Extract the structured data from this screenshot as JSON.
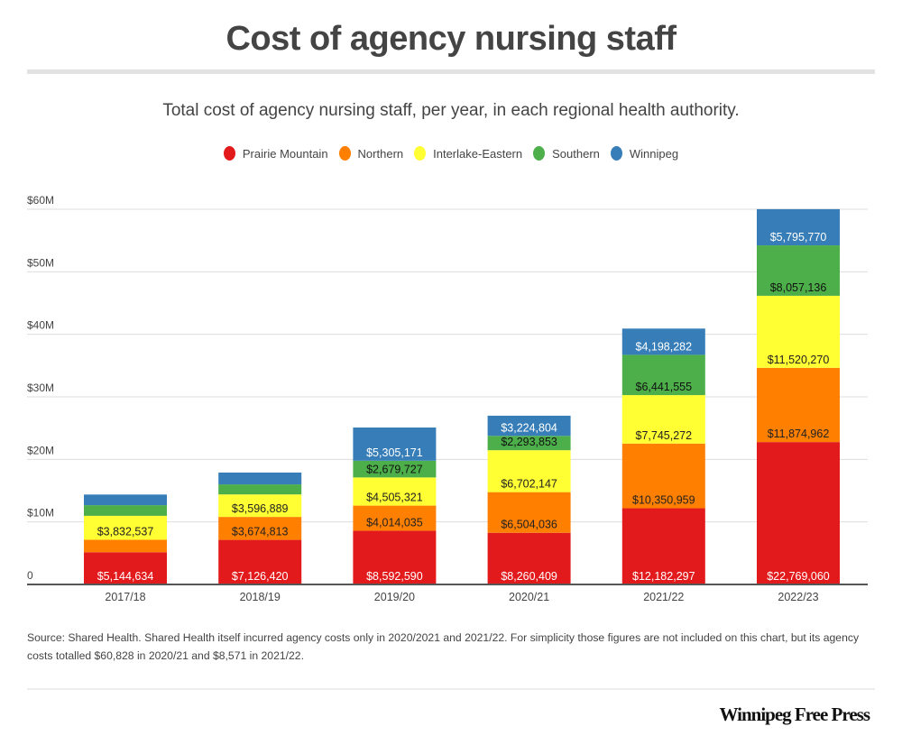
{
  "header": {
    "title": "Cost of agency nursing staff",
    "subtitle": "Total cost of agency nursing staff, per year, in each regional health authority."
  },
  "footer": {
    "note": "Source: Shared Health.  Shared Health itself incurred agency costs only in 2020/2021 and 2021/22. For simplicity those figures are not included on this chart, but its agency costs totalled $60,828 in 2020/21 and $8,571 in 2021/22.",
    "brand": "Winnipeg Free Press"
  },
  "chart_data": {
    "type": "bar",
    "stacked": true,
    "title": "Cost of agency nursing staff",
    "subtitle": "Total cost of agency nursing staff, per year, in each regional health authority.",
    "xlabel": "",
    "ylabel": "",
    "ylim": [
      0,
      60000000
    ],
    "yticks": [
      0,
      10000000,
      20000000,
      30000000,
      40000000,
      50000000,
      60000000
    ],
    "ytick_labels": [
      "0",
      "$10M",
      "$20M",
      "$30M",
      "$40M",
      "$50M",
      "$60M"
    ],
    "grid": true,
    "legend_position": "top-center",
    "categories": [
      "2017/18",
      "2018/19",
      "2019/20",
      "2020/21",
      "2021/22",
      "2022/23"
    ],
    "series": [
      {
        "name": "Prairie Mountain",
        "color": "#e31a1c",
        "label_color": "#ffffff",
        "values": [
          5144634,
          7126420,
          8592590,
          8260409,
          12182297,
          22769060
        ],
        "labels": [
          "$5,144,634",
          "$7,126,420",
          "$8,592,590",
          "$8,260,409",
          "$12,182,297",
          "$22,769,060"
        ]
      },
      {
        "name": "Northern",
        "color": "#ff7f00",
        "label_color": "#222222",
        "values": [
          2000000,
          3674813,
          4014035,
          6504036,
          10350959,
          11874962
        ],
        "labels": [
          "",
          "$3,674,813",
          "$4,014,035",
          "$6,504,036",
          "$10,350,959",
          "$11,874,962"
        ]
      },
      {
        "name": "Interlake-Eastern",
        "color": "#ffff33",
        "label_color": "#222222",
        "values": [
          3832537,
          3596889,
          4505321,
          6702147,
          7745272,
          11520270
        ],
        "labels": [
          "$3,832,537",
          "$3,596,889",
          "$4,505,321",
          "$6,702,147",
          "$7,745,272",
          "$11,520,270"
        ]
      },
      {
        "name": "Southern",
        "color": "#4daf4a",
        "label_color": "#111111",
        "values": [
          1700000,
          1600000,
          2679727,
          2293853,
          6441555,
          8057136
        ],
        "labels": [
          "",
          "",
          "$2,679,727",
          "$2,293,853",
          "$6,441,555",
          "$8,057,136"
        ]
      },
      {
        "name": "Winnipeg",
        "color": "#377eb8",
        "label_color": "#ffffff",
        "values": [
          1700000,
          1900000,
          5305171,
          3224804,
          4198282,
          5795770
        ],
        "labels": [
          "",
          "",
          "$5,305,171",
          "$3,224,804",
          "$4,198,282",
          "$5,795,770"
        ]
      }
    ]
  }
}
